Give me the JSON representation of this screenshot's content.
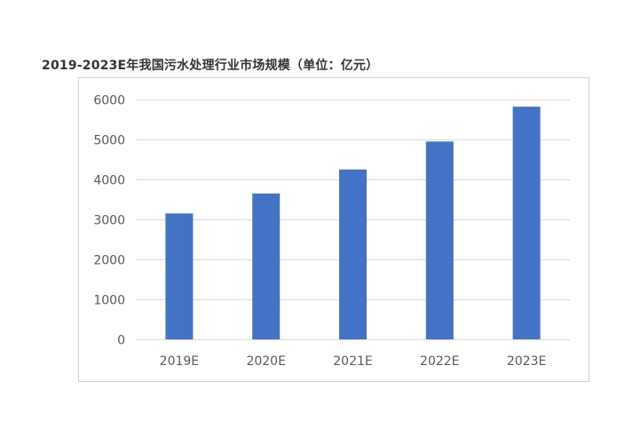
{
  "title": "2019-2023E年我国污水处理行业市场规模（单位：亿元）",
  "chart_data": {
    "type": "bar",
    "categories": [
      "2019E",
      "2020E",
      "2021E",
      "2022E",
      "2023E"
    ],
    "values": [
      3150,
      3650,
      4250,
      4950,
      5820
    ],
    "ylim": [
      0,
      6000
    ],
    "yticks": [
      0,
      1000,
      2000,
      3000,
      4000,
      5000,
      6000
    ],
    "grid": true,
    "legend": "none",
    "colors": {
      "bar": "#4472C4",
      "grid": "#d9d9d9",
      "tick_text": "#595959"
    }
  }
}
